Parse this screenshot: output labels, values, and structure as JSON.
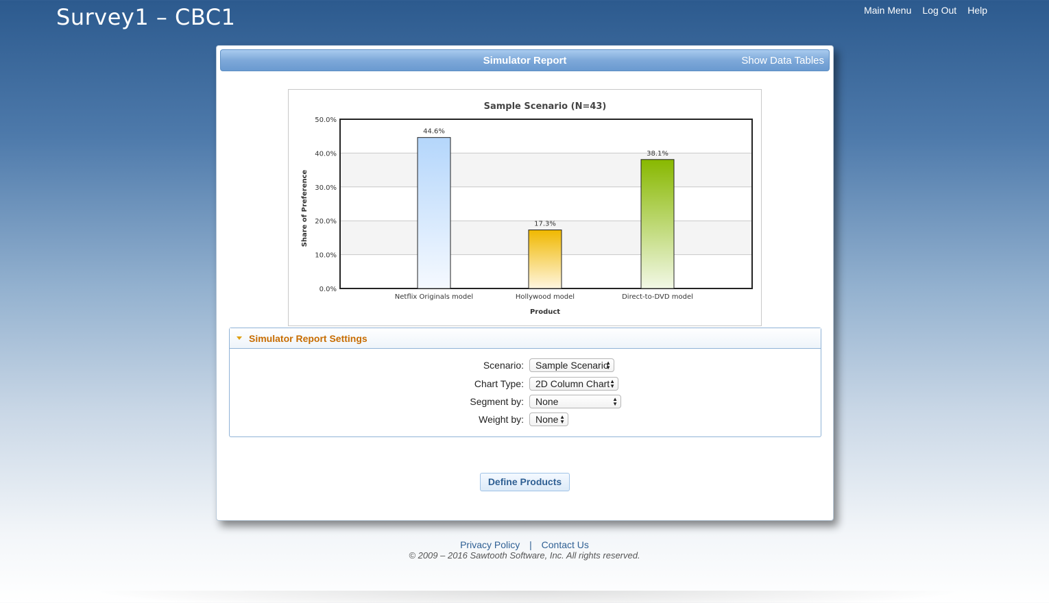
{
  "app": {
    "title": "Survey1 – CBC1"
  },
  "nav": {
    "main_menu": "Main Menu",
    "log_out": "Log Out",
    "help": "Help"
  },
  "panel": {
    "title": "Simulator Report",
    "show_data_tables": "Show Data Tables"
  },
  "chart_data": {
    "type": "bar",
    "title": "Sample Scenario (N=43)",
    "xlabel": "Product",
    "ylabel": "Share of Preference",
    "categories": [
      "Netflix Originals model",
      "Hollywood model",
      "Direct-to-DVD model"
    ],
    "values": [
      44.6,
      17.3,
      38.1
    ],
    "value_labels": [
      "44.6%",
      "17.3%",
      "38.1%"
    ],
    "ylim": [
      0,
      50
    ],
    "yticks": [
      0,
      10,
      20,
      30,
      40,
      50
    ],
    "ytick_labels": [
      "0.0%",
      "10.0%",
      "20.0%",
      "30.0%",
      "40.0%",
      "50.0%"
    ],
    "colors": [
      "#9cc6f2",
      "#f2bb00",
      "#8fbf00"
    ],
    "grid": true,
    "legend": "none"
  },
  "settings": {
    "header": "Simulator Report Settings",
    "scenario": {
      "label": "Scenario:",
      "value": "Sample Scenario"
    },
    "chart_type": {
      "label": "Chart Type:",
      "value": "2D Column Chart"
    },
    "segment_by": {
      "label": "Segment by:",
      "value": "None"
    },
    "weight_by": {
      "label": "Weight by:",
      "value": "None"
    }
  },
  "actions": {
    "define_products": "Define Products"
  },
  "footer": {
    "privacy": "Privacy Policy",
    "separator": "|",
    "contact": "Contact Us",
    "copyright": "© 2009 – 2016 Sawtooth Software, Inc.  All rights reserved."
  }
}
